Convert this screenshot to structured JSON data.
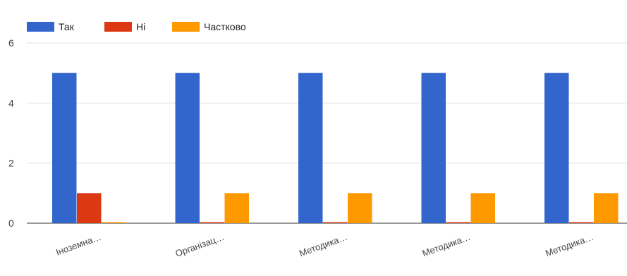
{
  "chart_data": {
    "type": "bar",
    "categories": [
      "Іноземна…",
      "Організац…",
      "Методика…",
      "Методика…",
      "Методика…"
    ],
    "series": [
      {
        "name": "Так",
        "color": "#3366cc",
        "values": [
          5,
          5,
          5,
          5,
          5
        ]
      },
      {
        "name": "Ні",
        "color": "#dc3912",
        "values": [
          1,
          0,
          0,
          0,
          0
        ]
      },
      {
        "name": "Частково",
        "color": "#ff9900",
        "values": [
          0,
          1,
          1,
          1,
          1
        ]
      }
    ],
    "y_ticks": [
      "0",
      "2",
      "4",
      "6"
    ],
    "ylim": [
      0,
      6
    ],
    "grid": true,
    "legend_position": "top-left",
    "title": "",
    "xlabel": "",
    "ylabel": ""
  }
}
